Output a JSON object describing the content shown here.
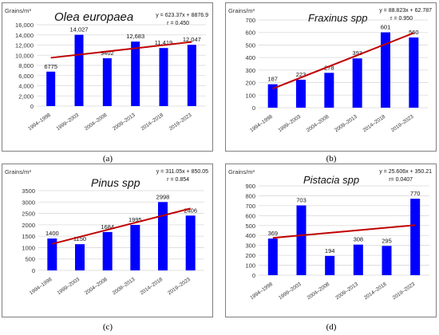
{
  "captions": [
    "(a)",
    "(b)",
    "(c)",
    "(d)"
  ],
  "colors": {
    "bar": "#0000ff",
    "trend": "#c00000",
    "border": "#7f7f7f"
  },
  "chart_data": [
    {
      "type": "bar",
      "title": "Olea europaea",
      "ylabel": "Grains/m³",
      "categories": [
        "1994–1998",
        "1999–2003",
        "2004–2008",
        "2009–2013",
        "2014–2018",
        "2019–2023"
      ],
      "values": [
        6775,
        14027,
        9402,
        12683,
        11419,
        12047
      ],
      "value_labels": [
        "6775",
        "14,027",
        "9402",
        "12,683",
        "11,419",
        "12,047"
      ],
      "ylim": [
        0,
        16000
      ],
      "yticks": [
        "0",
        "2,000",
        "4,000",
        "6,000",
        "8,000",
        "10,000",
        "12,000",
        "14,000",
        "16,000"
      ],
      "trend": {
        "slope": 623.37,
        "intercept": 8876.9,
        "equation": "y = 623.37x + 8876.9",
        "r": "r = 0.450"
      },
      "grid": true
    },
    {
      "type": "bar",
      "title": "Fraxinus spp",
      "ylabel": "Grains/m³",
      "categories": [
        "1994–1998",
        "1999–2003",
        "2004–2008",
        "2009–2013",
        "2014–2018",
        "2019–2023"
      ],
      "values": [
        187,
        223,
        278,
        393,
        601,
        560
      ],
      "value_labels": [
        "187",
        "223",
        "278",
        "393",
        "601",
        "560"
      ],
      "ylim": [
        0,
        700
      ],
      "yticks": [
        "0",
        "100",
        "200",
        "300",
        "400",
        "500",
        "600",
        "700"
      ],
      "trend": {
        "slope": 88.823,
        "intercept": 62.787,
        "equation": "y = 88.823x + 62.787",
        "r": "r = 0.950"
      },
      "grid": true
    },
    {
      "type": "bar",
      "title": "Pinus spp",
      "ylabel": "Grains/m³",
      "categories": [
        "1994–1998",
        "1999–2003",
        "2004–2008",
        "2009–2013",
        "2014–2018",
        "2019–2023"
      ],
      "values": [
        1400,
        1150,
        1684,
        1995,
        2998,
        2406
      ],
      "value_labels": [
        "1400",
        "1150",
        "1684",
        "1995",
        "2998",
        "2406"
      ],
      "ylim": [
        0,
        3500
      ],
      "yticks": [
        "0",
        "500",
        "1000",
        "1500",
        "2000",
        "2500",
        "3000",
        "3500"
      ],
      "trend": {
        "slope": 311.05,
        "intercept": 850.05,
        "equation": "y = 311.05x + 850.05",
        "r": "r = 0.854"
      },
      "grid": true
    },
    {
      "type": "bar",
      "title": "Pistacia spp",
      "ylabel": "Grains/m³",
      "categories": [
        "1994–1998",
        "1999–2003",
        "2004–2008",
        "2009–2013",
        "2014–2018",
        "2019–2023"
      ],
      "values": [
        369,
        703,
        194,
        308,
        295,
        770
      ],
      "value_labels": [
        "369",
        "703",
        "194",
        "308",
        "295",
        "770"
      ],
      "ylim": [
        0,
        900
      ],
      "yticks": [
        "0",
        "100",
        "200",
        "300",
        "400",
        "500",
        "600",
        "700",
        "800",
        "900"
      ],
      "trend": {
        "slope": 25.606,
        "intercept": 350.21,
        "equation": "y = 25.606x + 350.21",
        "r": "r= 0.0407"
      },
      "grid": true
    }
  ]
}
